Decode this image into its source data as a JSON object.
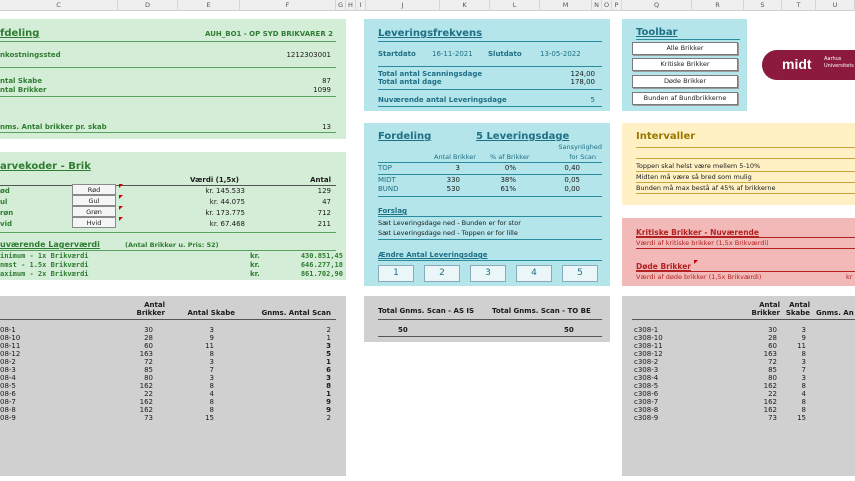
{
  "columns": [
    "C",
    "D",
    "E",
    "F",
    "G",
    "H",
    "I",
    "J",
    "K",
    "L",
    "M",
    "N",
    "O",
    "P",
    "Q",
    "R",
    "S",
    "T",
    "U"
  ],
  "afdeling": {
    "title": "fdeling",
    "code": "AUH_BO1 - OP SYD BRIKVARER 2",
    "omk_label": "nkostningssted",
    "omk_value": "1212303001",
    "skabe_label": "ntal Skabe",
    "skabe_value": "87",
    "brikker_label": "ntal Brikker",
    "brikker_value": "1099",
    "gnms_label": "nms. Antal brikker pr. skab",
    "gnms_value": "13"
  },
  "farvekoder": {
    "title": "arvekoder - Brik",
    "col_vaerdi": "Værdi (1,5x)",
    "col_antal": "Antal",
    "rows": [
      {
        "label": "ød",
        "btn": "Rød",
        "value": "kr. 145.533",
        "antal": "129"
      },
      {
        "label": "ul",
        "btn": "Gul",
        "value": "kr. 44.075",
        "antal": "47"
      },
      {
        "label": "røn",
        "btn": "Grøn",
        "value": "kr. 173.775",
        "antal": "712"
      },
      {
        "label": "vid",
        "btn": "Hvid",
        "value": "kr. 67.468",
        "antal": "211"
      }
    ],
    "lager_title": "uværende Lagerværdi",
    "lager_note": "(Antal Brikker u. Pris: 52)",
    "lager": [
      {
        "label": "inimum  - 1x Brikværdi",
        "kr": "kr.",
        "value": "430.851,45"
      },
      {
        "label": "nmst    - 1.5x Brikværdi",
        "kr": "kr.",
        "value": "646.277,18"
      },
      {
        "label": "aximum  - 2x Brikværdi",
        "kr": "kr.",
        "value": "861.702,90"
      }
    ]
  },
  "left_table": {
    "h_antal": "Antal",
    "h_brikker": "Brikker",
    "h_skabe": "Antal Skabe",
    "h_scan": "Gnms. Antal Scan",
    "rows": [
      {
        "name": "08-1",
        "brikker": "30",
        "skabe": "3",
        "scan": "2",
        "bold": false
      },
      {
        "name": "08-10",
        "brikker": "28",
        "skabe": "9",
        "scan": "1",
        "bold": false
      },
      {
        "name": "08-11",
        "brikker": "60",
        "skabe": "11",
        "scan": "3",
        "bold": true
      },
      {
        "name": "08-12",
        "brikker": "163",
        "skabe": "8",
        "scan": "5",
        "bold": true
      },
      {
        "name": "08-2",
        "brikker": "72",
        "skabe": "3",
        "scan": "1",
        "bold": true
      },
      {
        "name": "08-3",
        "brikker": "85",
        "skabe": "7",
        "scan": "6",
        "bold": true
      },
      {
        "name": "08-4",
        "brikker": "80",
        "skabe": "3",
        "scan": "3",
        "bold": true
      },
      {
        "name": "08-5",
        "brikker": "162",
        "skabe": "8",
        "scan": "8",
        "bold": true
      },
      {
        "name": "08-6",
        "brikker": "22",
        "skabe": "4",
        "scan": "1",
        "bold": true
      },
      {
        "name": "08-7",
        "brikker": "162",
        "skabe": "8",
        "scan": "9",
        "bold": true
      },
      {
        "name": "08-8",
        "brikker": "162",
        "skabe": "8",
        "scan": "9",
        "bold": true
      },
      {
        "name": "08-9",
        "brikker": "73",
        "skabe": "15",
        "scan": "2",
        "bold": false
      }
    ]
  },
  "leveringsfrekvens": {
    "title": "Leveringsfrekvens",
    "start_label": "Startdato",
    "start_value": "16-11-2021",
    "slut_label": "Slutdato",
    "slut_value": "13-05-2022",
    "scan_label": "Total antal Scanningsdage",
    "scan_value": "124,00",
    "dage_label": "Total antal dage",
    "dage_value": "178,00",
    "nuv_label": "Nuværende antal Leveringsdage",
    "nuv_value": "5"
  },
  "fordeling": {
    "title": "Fordeling",
    "subtitle": "5  Leveringsdage",
    "h_brikker": "Antal Brikker",
    "h_pct": "% af Brikker",
    "h_sans1": "Sansynlighed",
    "h_sans2": "for Scan",
    "rows": [
      {
        "name": "TOP",
        "antal": "3",
        "pct": "0%",
        "sans": "0,40"
      },
      {
        "name": "MIDT",
        "antal": "330",
        "pct": "38%",
        "sans": "0,05"
      },
      {
        "name": "BUND",
        "antal": "530",
        "pct": "61%",
        "sans": "0,00"
      }
    ],
    "forslag_title": "Forslag",
    "forslag_1": "Sæt Leveringsdage ned - Bunden er for stor",
    "forslag_2": "Sæt Leveringsdage ned - Toppen er for lille",
    "aendre_title": "Ændre Antal Leveringsdage",
    "buttons": [
      "1",
      "2",
      "3",
      "4",
      "5"
    ]
  },
  "scan_summary": {
    "h_asis": "Total Gnms. Scan - AS IS",
    "h_tobe": "Total Gnms. Scan - TO BE",
    "asis": "50",
    "tobe": "50"
  },
  "toolbar": {
    "title": "Toolbar",
    "buttons": [
      "Alle Brikker",
      "Kritiske Brikker",
      "Døde Brikker",
      "Bunden af Bundbrikkerne"
    ]
  },
  "logo": {
    "word": "midt",
    "line1": "Aarhus",
    "line2": "Universitets",
    "bg": "#8b1a3c"
  },
  "intervaller": {
    "title": "Intervaller",
    "lines": [
      "Toppen skal helst være mellem 5-10%",
      "Midten må være så bred som mulig",
      "Bunden må max bestå af 45% af brikkerne"
    ]
  },
  "kritiske": {
    "title": "Kritiske Brikker - Nuværende",
    "vaerdi": "Værdi af kritiske brikker (1,5x Brikværdi)",
    "doede_title": "Døde Brikker",
    "doede_vaerdi": "Værdi af døde brikker (1,5x Brikværdi)",
    "kr": "kr"
  },
  "right_table": {
    "h_antal1": "Antal",
    "h_brikker": "Brikker",
    "h_antal2": "Antal",
    "h_skabe": "Skabe",
    "h_gnms": "Gnms. An",
    "rows": [
      {
        "name": "c308-1",
        "brikker": "30",
        "skabe": "3"
      },
      {
        "name": "c308-10",
        "brikker": "28",
        "skabe": "9"
      },
      {
        "name": "c308-11",
        "brikker": "60",
        "skabe": "11"
      },
      {
        "name": "c308-12",
        "brikker": "163",
        "skabe": "8"
      },
      {
        "name": "c308-2",
        "brikker": "72",
        "skabe": "3"
      },
      {
        "name": "c308-3",
        "brikker": "85",
        "skabe": "7"
      },
      {
        "name": "c308-4",
        "brikker": "80",
        "skabe": "3"
      },
      {
        "name": "c308-5",
        "brikker": "162",
        "skabe": "8"
      },
      {
        "name": "c308-6",
        "brikker": "22",
        "skabe": "4"
      },
      {
        "name": "c308-7",
        "brikker": "162",
        "skabe": "8"
      },
      {
        "name": "c308-8",
        "brikker": "162",
        "skabe": "8"
      },
      {
        "name": "c308-9",
        "brikker": "73",
        "skabe": "15"
      }
    ]
  }
}
